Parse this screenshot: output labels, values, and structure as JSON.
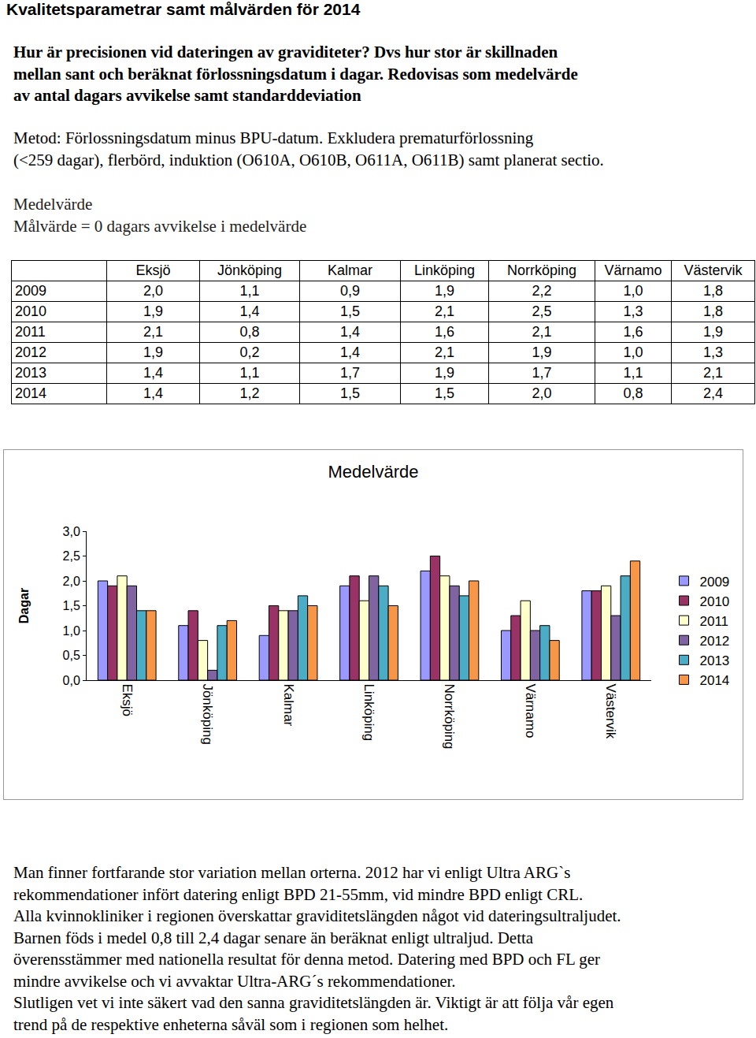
{
  "header": {
    "title": "Kvalitetsparametrar samt målvärden för 2014"
  },
  "question": [
    "Hur är precisionen vid dateringen av graviditeter? Dvs hur stor är skillnaden",
    "mellan sant och beräknat förlossningsdatum i dagar. Redovisas som medelvärde",
    "av antal dagars avvikelse samt standarddeviation"
  ],
  "method": [
    "Metod: Förlossningsdatum minus BPU-datum. Exkludera prematurförlossning",
    "(<259 dagar), flerbörd, induktion (O610A, O610B, O611A, O611B) samt planerat sectio."
  ],
  "measure": [
    "Medelvärde",
    "Målvärde = 0 dagars avvikelse i medelvärde"
  ],
  "table": {
    "header": [
      "",
      "Eksjö",
      "Jönköping",
      "Kalmar",
      "Linköping",
      "Norrköping",
      "Värnamo",
      "Västervik"
    ],
    "rows": [
      [
        "2009",
        "2,0",
        "1,1",
        "0,9",
        "1,9",
        "2,2",
        "1,0",
        "1,8"
      ],
      [
        "2010",
        "1,9",
        "1,4",
        "1,5",
        "2,1",
        "2,5",
        "1,3",
        "1,8"
      ],
      [
        "2011",
        "2,1",
        "0,8",
        "1,4",
        "1,6",
        "2,1",
        "1,6",
        "1,9"
      ],
      [
        "2012",
        "1,9",
        "0,2",
        "1,4",
        "2,1",
        "1,9",
        "1,0",
        "1,3"
      ],
      [
        "2013",
        "1,4",
        "1,1",
        "1,7",
        "1,9",
        "1,7",
        "1,1",
        "2,1"
      ],
      [
        "2014",
        "1,4",
        "1,2",
        "1,5",
        "1,5",
        "2,0",
        "0,8",
        "2,4"
      ]
    ]
  },
  "chart_data": {
    "type": "bar",
    "title": "Medelvärde",
    "y_label": "Dagar",
    "categories": [
      "Eksjö",
      "Jönköping",
      "Kalmar",
      "Linköping",
      "Norrköping",
      "Värnamo",
      "Västervik"
    ],
    "series": [
      {
        "name": "2009",
        "color": "#9999ff",
        "values": [
          2.0,
          1.1,
          0.9,
          1.9,
          2.2,
          1.0,
          1.8
        ]
      },
      {
        "name": "2010",
        "color": "#993366",
        "values": [
          1.9,
          1.4,
          1.5,
          2.1,
          2.5,
          1.3,
          1.8
        ]
      },
      {
        "name": "2011",
        "color": "#ffffcc",
        "values": [
          2.1,
          0.8,
          1.4,
          1.6,
          2.1,
          1.6,
          1.9
        ]
      },
      {
        "name": "2012",
        "color": "#8064a2",
        "values": [
          1.9,
          0.2,
          1.4,
          2.1,
          1.9,
          1.0,
          1.3
        ]
      },
      {
        "name": "2013",
        "color": "#4bacc6",
        "values": [
          1.4,
          1.1,
          1.7,
          1.9,
          1.7,
          1.1,
          2.1
        ]
      },
      {
        "name": "2014",
        "color": "#f79646",
        "values": [
          1.4,
          1.2,
          1.5,
          1.5,
          2.0,
          0.8,
          2.4
        ]
      }
    ],
    "ylim": [
      0,
      3
    ],
    "yticks": [
      {
        "value": 0,
        "label": "0,0"
      },
      {
        "value": 0.5,
        "label": "0,5"
      },
      {
        "value": 1,
        "label": "1,0"
      },
      {
        "value": 1.5,
        "label": "1,5"
      },
      {
        "value": 2,
        "label": "2,0"
      },
      {
        "value": 2.5,
        "label": "2,5"
      },
      {
        "value": 3,
        "label": "3,0"
      }
    ],
    "grid": false,
    "legend": "right"
  },
  "conclusion": [
    "Man finner fortfarande stor variation mellan orterna. 2012 har vi enligt Ultra ARG`s",
    "rekommendationer infört datering enligt BPD 21-55mm, vid mindre BPD enligt CRL.",
    "Alla kvinnokliniker i regionen överskattar graviditetslängden något vid dateringsultraljudet.",
    "Barnen föds i medel 0,8 till 2,4 dagar senare än beräknat enligt ultraljud. Detta",
    "överensstämmer med nationella resultat för denna metod. Datering med BPD och FL ger",
    "mindre avvikelse och vi avvaktar Ultra-ARG´s rekommendationer.",
    "Slutligen vet vi inte säkert vad den sanna graviditetslängden är. Viktigt är att följa vår egen",
    "trend på de respektive enheterna såväl som i regionen som helhet."
  ]
}
